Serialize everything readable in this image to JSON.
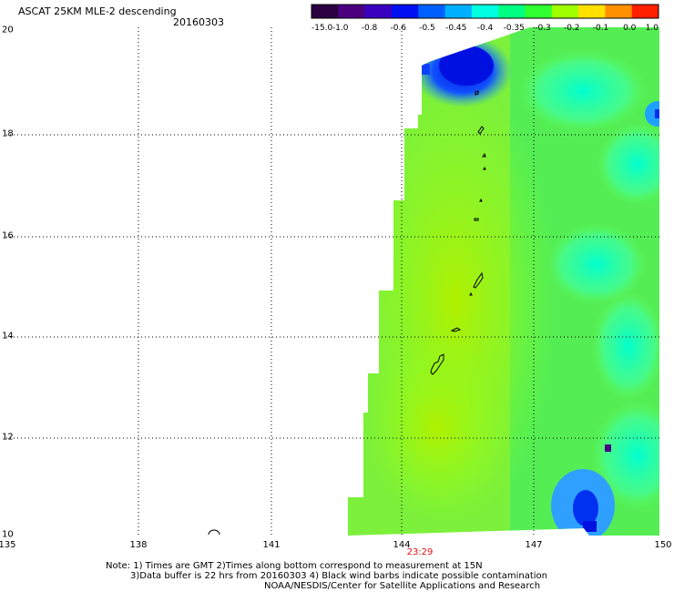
{
  "title": "ASCAT 25KM MLE-2 descending",
  "date": "20160303",
  "colorbar": {
    "tick_labels": [
      "-15.0",
      "-1.0",
      "-0.8",
      "-0.6",
      "-0.5",
      "-0.45",
      "-0.4",
      "-0.35",
      "-0.3",
      "-0.2",
      "-0.1",
      "0.0",
      "1.0"
    ],
    "colors": [
      "#2a0040",
      "#4b0080",
      "#3a00c0",
      "#0010f0",
      "#0060ff",
      "#00b0ff",
      "#00ffe0",
      "#00ff80",
      "#30ff30",
      "#a0ff00",
      "#ffe000",
      "#ff9000",
      "#ff2000"
    ]
  },
  "axes": {
    "x_ticks": [
      "135",
      "138",
      "141",
      "144",
      "147",
      "150"
    ],
    "y_ticks": [
      "20",
      "18",
      "16",
      "14",
      "12",
      "10"
    ],
    "x_range": [
      135,
      150
    ],
    "y_range": [
      10,
      20
    ]
  },
  "time_label": "23:29",
  "notes": [
    "Note: 1) Times are GMT 2)Times along bottom correspond to measurement at 15N",
    "3)Data buffer is 22 hrs from 20160303 4) Black wind barbs indicate possible contamination",
    "NOAA/NESDIS/Center for Satellite Applications and Research"
  ]
}
